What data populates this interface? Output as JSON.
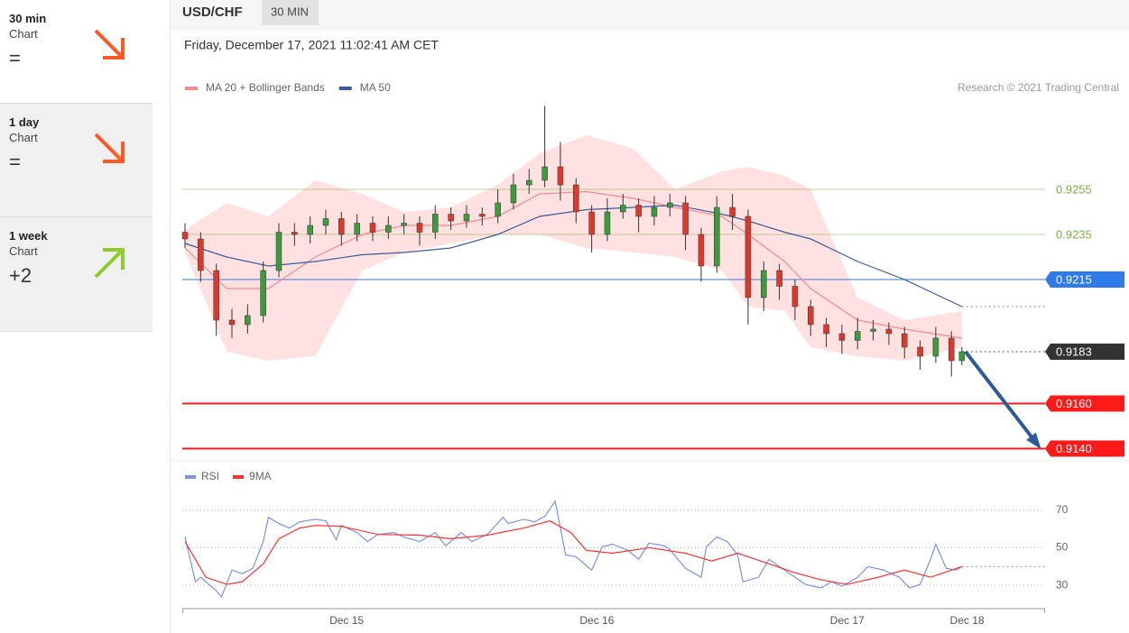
{
  "sidebar": [
    {
      "period": "30 min",
      "label": "Chart",
      "score": "="
    },
    {
      "period": "1 day",
      "label": "Chart",
      "score": "="
    },
    {
      "period": "1 week",
      "label": "Chart",
      "score": "+2"
    }
  ],
  "header": {
    "symbol": "USD/CHF",
    "interval": "30 MIN",
    "timestamp": "Friday, December 17, 2021 11:02:41 AM CET"
  },
  "chart_data": [
    {
      "type": "candlestick",
      "credit": "Research © 2021 Trading Central",
      "xlim": [
        0,
        166
      ],
      "ylim": [
        0.9137,
        0.9293
      ],
      "candles": {
        "up_color": "#3d9a3d",
        "down_color": "#d93a2b",
        "x": [
          0,
          3,
          6,
          9,
          12,
          15,
          18,
          21,
          24,
          27,
          30,
          33,
          36,
          39,
          42,
          45,
          48,
          51,
          54,
          57,
          60,
          63,
          66,
          69,
          72,
          75,
          78,
          81,
          84,
          87,
          90,
          93,
          96,
          99,
          102,
          105,
          108,
          111,
          114,
          117,
          120,
          123,
          126,
          129,
          132,
          135,
          138,
          141,
          144,
          147,
          149
        ],
        "open": [
          0.9236,
          0.9233,
          0.9219,
          0.9197,
          0.9195,
          0.9199,
          0.9219,
          0.9236,
          0.9235,
          0.9239,
          0.9242,
          0.9235,
          0.924,
          0.9236,
          0.9239,
          0.924,
          0.9236,
          0.9244,
          0.9241,
          0.9244,
          0.9243,
          0.9249,
          0.9257,
          0.9259,
          0.9265,
          0.9257,
          0.9245,
          0.9235,
          0.9245,
          0.9248,
          0.9243,
          0.9247,
          0.9249,
          0.9235,
          0.9221,
          0.9247,
          0.9243,
          0.9207,
          0.9219,
          0.9212,
          0.9203,
          0.9195,
          0.9191,
          0.9188,
          0.9192,
          0.9193,
          0.9191,
          0.9185,
          0.9181,
          0.9189,
          0.9179
        ],
        "high": [
          0.924,
          0.9236,
          0.9222,
          0.9202,
          0.9204,
          0.9223,
          0.924,
          0.924,
          0.9243,
          0.9246,
          0.9245,
          0.9244,
          0.9243,
          0.9243,
          0.9244,
          0.9243,
          0.9248,
          0.9247,
          0.9248,
          0.9247,
          0.9255,
          0.9262,
          0.9264,
          0.9292,
          0.9276,
          0.926,
          0.9248,
          0.9251,
          0.9253,
          0.9251,
          0.9252,
          0.9253,
          0.9252,
          0.9238,
          0.9252,
          0.9253,
          0.9246,
          0.9223,
          0.9222,
          0.9215,
          0.9206,
          0.9198,
          0.9195,
          0.9198,
          0.9197,
          0.9196,
          0.9194,
          0.9188,
          0.9194,
          0.9192,
          0.9185
        ],
        "low": [
          0.9229,
          0.9214,
          0.919,
          0.9189,
          0.9191,
          0.9196,
          0.9216,
          0.923,
          0.9231,
          0.9235,
          0.923,
          0.9232,
          0.9232,
          0.9233,
          0.9235,
          0.923,
          0.9233,
          0.9237,
          0.9238,
          0.9239,
          0.924,
          0.9246,
          0.9253,
          0.9256,
          0.925,
          0.924,
          0.9227,
          0.9232,
          0.9242,
          0.9236,
          0.9239,
          0.9243,
          0.9228,
          0.9214,
          0.9218,
          0.9237,
          0.9195,
          0.9201,
          0.9206,
          0.9197,
          0.919,
          0.9185,
          0.9182,
          0.9184,
          0.9188,
          0.9186,
          0.918,
          0.9175,
          0.9178,
          0.9172,
          0.9177
        ],
        "close": [
          0.9233,
          0.9219,
          0.9197,
          0.9195,
          0.9199,
          0.9219,
          0.9236,
          0.9235,
          0.9239,
          0.9242,
          0.9235,
          0.924,
          0.9236,
          0.9239,
          0.924,
          0.9236,
          0.9244,
          0.9241,
          0.9244,
          0.9243,
          0.9249,
          0.9257,
          0.9259,
          0.9265,
          0.9257,
          0.9245,
          0.9235,
          0.9245,
          0.9248,
          0.9243,
          0.9247,
          0.9249,
          0.9235,
          0.9221,
          0.9247,
          0.9243,
          0.9207,
          0.9219,
          0.9212,
          0.9203,
          0.9195,
          0.9191,
          0.9188,
          0.9192,
          0.9193,
          0.9191,
          0.9185,
          0.9181,
          0.9189,
          0.9179,
          0.9183
        ]
      },
      "series": [
        {
          "name": "MA 20 + Bollinger Bands",
          "color": "#f28b8b",
          "band_color": "#ffdcdc",
          "x": [
            0,
            8,
            16,
            25,
            34,
            42,
            51,
            60,
            68,
            77,
            86,
            94,
            103,
            108,
            115,
            120,
            129,
            138,
            149
          ],
          "values": [
            0.9229,
            0.9211,
            0.9211,
            0.9225,
            0.9235,
            0.9239,
            0.9239,
            0.9243,
            0.9253,
            0.9254,
            0.9251,
            0.9247,
            0.9243,
            0.9235,
            0.9223,
            0.9211,
            0.9197,
            0.9193,
            0.9189
          ],
          "upper": [
            0.9237,
            0.9249,
            0.9243,
            0.9259,
            0.9253,
            0.9245,
            0.9247,
            0.9257,
            0.9271,
            0.9279,
            0.9273,
            0.9255,
            0.9263,
            0.9265,
            0.9261,
            0.9255,
            0.9207,
            0.9197,
            0.9201
          ],
          "lower": [
            0.9227,
            0.9183,
            0.9179,
            0.9181,
            0.9219,
            0.9227,
            0.9231,
            0.9235,
            0.9235,
            0.9229,
            0.9227,
            0.9225,
            0.9219,
            0.9203,
            0.9201,
            0.9185,
            0.9181,
            0.9179,
            0.9185
          ]
        },
        {
          "name": "MA 50",
          "color": "#3a5a9c",
          "x": [
            0,
            8,
            16,
            25,
            34,
            42,
            51,
            60,
            68,
            77,
            86,
            94,
            103,
            108,
            115,
            120,
            129,
            138,
            149
          ],
          "values": [
            0.9231,
            0.9225,
            0.9221,
            0.9223,
            0.9226,
            0.9227,
            0.9229,
            0.9235,
            0.9243,
            0.9246,
            0.9247,
            0.9248,
            0.9244,
            0.9241,
            0.9236,
            0.9233,
            0.9223,
            0.9215,
            0.9203
          ]
        }
      ],
      "levels": [
        {
          "value": 0.9255,
          "color": "#7cb342",
          "line": "solid",
          "box": false
        },
        {
          "value": 0.9235,
          "color": "#7cb342",
          "line": "solid",
          "box": false
        },
        {
          "value": 0.9215,
          "color": "#2f7be8",
          "line": "solid",
          "box": true
        },
        {
          "value": 0.9183,
          "color": "#333333",
          "line": "dotted",
          "box": true
        },
        {
          "value": 0.916,
          "label": "0.9160",
          "color": "#ff1a1a",
          "line": "thick",
          "box": true
        },
        {
          "value": 0.914,
          "label": "0.9140",
          "color": "#ff1a1a",
          "line": "thick",
          "box": true
        }
      ]
    },
    {
      "type": "line",
      "xlim": [
        0,
        166
      ],
      "ylim": [
        19,
        80
      ],
      "yticks": [
        30,
        50,
        70
      ],
      "grid": true,
      "xticks": [
        {
          "value": 31,
          "label": "Dec 15"
        },
        {
          "value": 79,
          "label": "Dec 16"
        },
        {
          "value": 127,
          "label": "Dec 17"
        },
        {
          "value": 150,
          "label": "Dec 18"
        }
      ],
      "series": [
        {
          "name": "RSI",
          "color": "#7b93e6",
          "x": [
            0,
            2,
            3,
            6,
            7,
            9,
            11,
            13,
            15,
            16,
            18,
            20,
            22,
            25,
            27,
            29,
            30,
            33,
            35,
            37,
            40,
            42,
            45,
            48,
            50,
            53,
            55,
            58,
            61,
            62,
            65,
            67,
            69,
            71,
            73,
            75,
            78,
            80,
            82,
            85,
            87,
            89,
            92,
            93,
            96,
            99,
            100,
            102,
            104,
            106,
            107,
            110,
            112,
            114,
            117,
            119,
            122,
            124,
            126,
            129,
            131,
            134,
            137,
            139,
            141,
            143,
            144,
            146,
            148,
            149
          ],
          "values": [
            55.7,
            31.9,
            34.3,
            27.1,
            23.8,
            38.1,
            36.2,
            39.0,
            53.3,
            66.2,
            62.9,
            60.5,
            63.8,
            65.2,
            64.3,
            54.3,
            61.9,
            58.1,
            53.3,
            57.1,
            58.1,
            55.7,
            53.3,
            58.1,
            51.0,
            58.1,
            53.3,
            57.1,
            66.2,
            62.9,
            65.2,
            63.8,
            66.7,
            74.8,
            46.2,
            45.2,
            38.1,
            50.5,
            51.9,
            48.6,
            43.8,
            52.4,
            51.0,
            49.0,
            39.0,
            34.3,
            50.5,
            55.7,
            53.3,
            46.2,
            31.9,
            34.3,
            43.8,
            40.0,
            34.3,
            30.5,
            28.6,
            31.9,
            29.5,
            34.3,
            40.0,
            38.1,
            34.3,
            28.6,
            30.5,
            43.8,
            51.9,
            39.0,
            38.1,
            40.0
          ]
        },
        {
          "name": "9MA",
          "color": "#ff3030",
          "x": [
            0,
            4,
            8,
            11,
            15,
            18,
            22,
            25,
            30,
            37,
            45,
            51,
            58,
            65,
            70,
            74,
            77,
            82,
            89,
            96,
            101,
            106,
            112,
            117,
            122,
            127,
            133,
            138,
            143,
            149
          ],
          "values": [
            53.3,
            34.3,
            30.5,
            31.9,
            41.4,
            54.8,
            60.5,
            61.9,
            61.4,
            57.1,
            56.7,
            54.8,
            56.7,
            60.5,
            64.3,
            58.1,
            48.6,
            47.1,
            50.0,
            47.1,
            42.9,
            47.1,
            41.4,
            36.7,
            32.9,
            30.5,
            34.3,
            38.1,
            34.3,
            40.0
          ]
        }
      ]
    }
  ]
}
